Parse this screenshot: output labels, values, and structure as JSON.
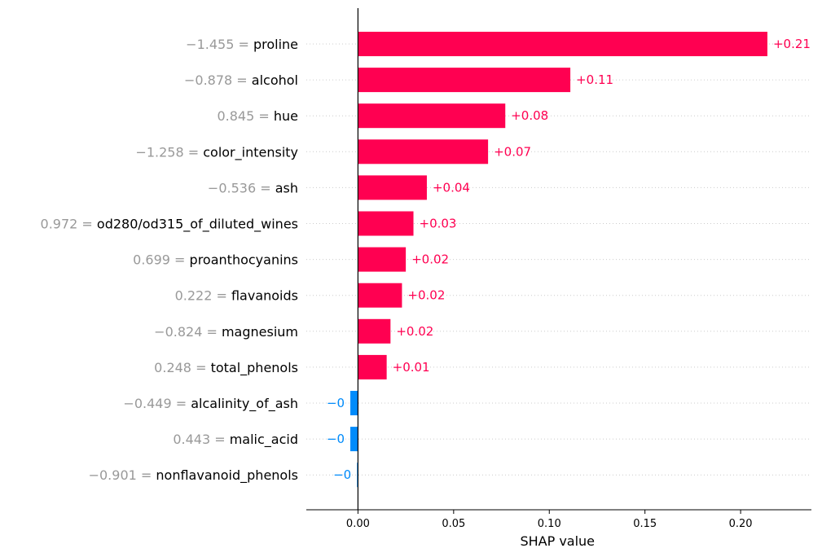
{
  "chart_data": {
    "type": "bar",
    "orientation": "horizontal",
    "xlabel": "SHAP value",
    "xlim": [
      -0.027,
      0.237
    ],
    "xticks": [
      "0.00",
      "0.05",
      "0.10",
      "0.15",
      "0.20"
    ],
    "xtick_values": [
      0,
      0.05,
      0.1,
      0.15,
      0.2
    ],
    "colors": {
      "positive": "#ff0051",
      "negative": "#008bfb"
    },
    "features": [
      {
        "name": "proline",
        "value": "−1.455",
        "shap": 0.214,
        "label": "+0.21"
      },
      {
        "name": "alcohol",
        "value": "−0.878",
        "shap": 0.111,
        "label": "+0.11"
      },
      {
        "name": "hue",
        "value": "0.845",
        "shap": 0.077,
        "label": "+0.08"
      },
      {
        "name": "color_intensity",
        "value": "−1.258",
        "shap": 0.068,
        "label": "+0.07"
      },
      {
        "name": "ash",
        "value": "−0.536",
        "shap": 0.036,
        "label": "+0.04"
      },
      {
        "name": "od280/od315_of_diluted_wines",
        "value": "0.972",
        "shap": 0.029,
        "label": "+0.03"
      },
      {
        "name": "proanthocyanins",
        "value": "0.699",
        "shap": 0.025,
        "label": "+0.02"
      },
      {
        "name": "flavanoids",
        "value": "0.222",
        "shap": 0.023,
        "label": "+0.02"
      },
      {
        "name": "magnesium",
        "value": "−0.824",
        "shap": 0.017,
        "label": "+0.02"
      },
      {
        "name": "total_phenols",
        "value": "0.248",
        "shap": 0.015,
        "label": "+0.01"
      },
      {
        "name": "alcalinity_of_ash",
        "value": "−0.449",
        "shap": -0.004,
        "label": "−0"
      },
      {
        "name": "malic_acid",
        "value": "0.443",
        "shap": -0.004,
        "label": "−0"
      },
      {
        "name": "nonflavanoid_phenols",
        "value": "−0.901",
        "shap": -0.0005,
        "label": "−0"
      }
    ]
  }
}
